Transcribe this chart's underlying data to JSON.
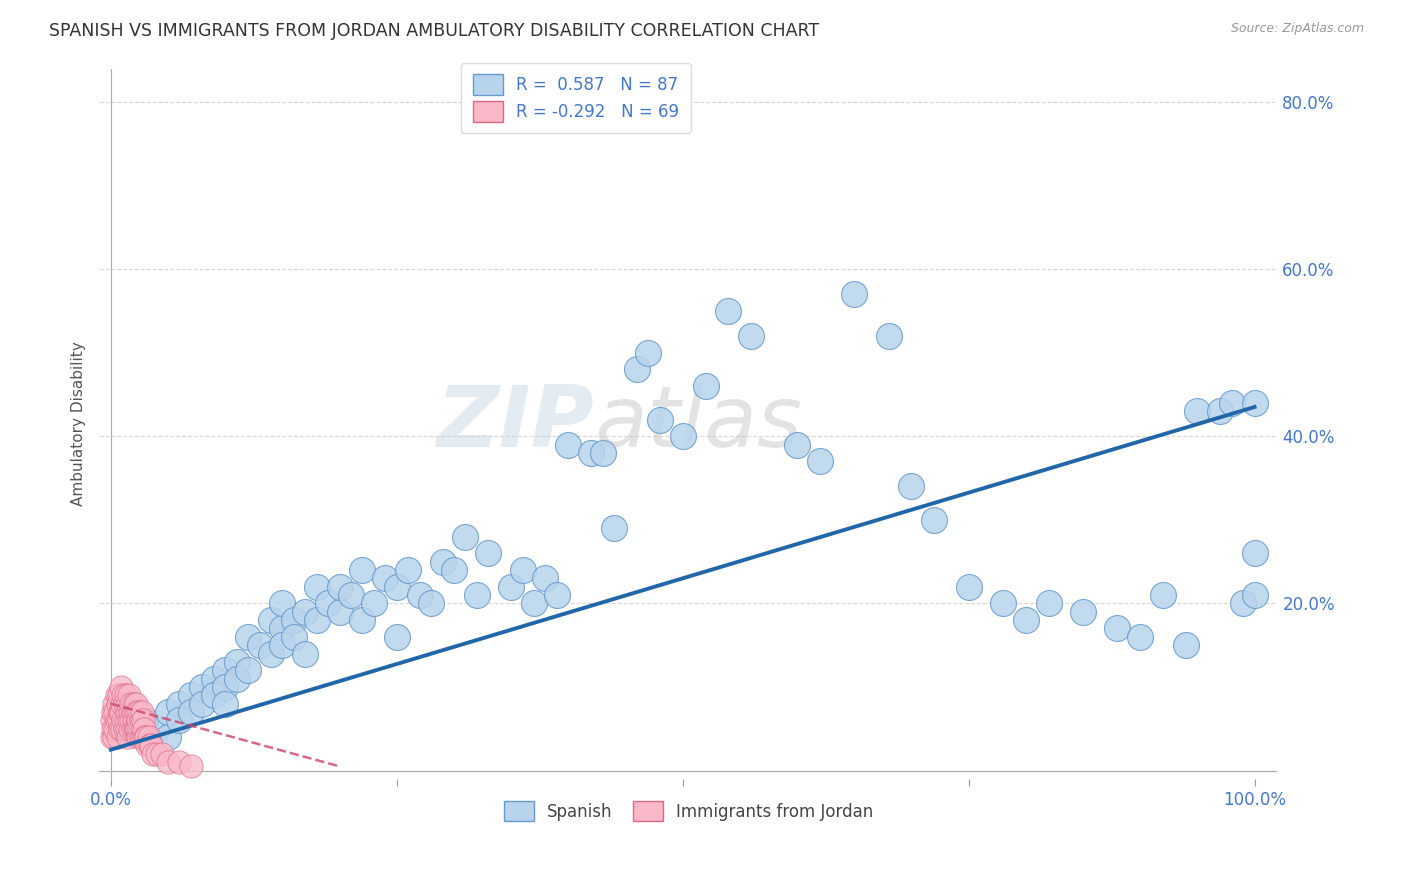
{
  "title": "SPANISH VS IMMIGRANTS FROM JORDAN AMBULATORY DISABILITY CORRELATION CHART",
  "source": "Source: ZipAtlas.com",
  "ylabel": "Ambulatory Disability",
  "xlabel": "",
  "xlim": [
    0,
    1.0
  ],
  "ylim": [
    0,
    0.84
  ],
  "xticks": [
    0.0,
    0.25,
    0.5,
    0.75,
    1.0
  ],
  "xticklabels": [
    "0.0%",
    "",
    "",
    "",
    "100.0%"
  ],
  "ytick_positions": [
    0.0,
    0.2,
    0.4,
    0.6,
    0.8
  ],
  "yticklabels": [
    "",
    "20.0%",
    "40.0%",
    "60.0%",
    "80.0%"
  ],
  "R_spanish": 0.587,
  "N_spanish": 87,
  "R_jordan": -0.292,
  "N_jordan": 69,
  "blue_color": "#b8d4ec",
  "blue_edge_color": "#6699cc",
  "blue_line_color": "#2266aa",
  "pink_color": "#f8b8c8",
  "pink_edge_color": "#dd6688",
  "pink_line_color": "#cc4466",
  "background_color": "#ffffff",
  "grid_color": "#cccccc",
  "title_color": "#333333",
  "axis_label_color": "#555555",
  "tick_label_color": "#4477cc",
  "watermark_left": "ZIP",
  "watermark_right": "atlas",
  "spanish_x": [
    0.03,
    0.04,
    0.05,
    0.05,
    0.06,
    0.06,
    0.07,
    0.07,
    0.08,
    0.08,
    0.09,
    0.09,
    0.1,
    0.1,
    0.1,
    0.11,
    0.11,
    0.12,
    0.12,
    0.13,
    0.14,
    0.14,
    0.15,
    0.15,
    0.15,
    0.16,
    0.16,
    0.17,
    0.17,
    0.18,
    0.18,
    0.19,
    0.2,
    0.2,
    0.21,
    0.22,
    0.22,
    0.23,
    0.24,
    0.25,
    0.25,
    0.26,
    0.27,
    0.28,
    0.29,
    0.3,
    0.31,
    0.32,
    0.33,
    0.35,
    0.36,
    0.37,
    0.38,
    0.39,
    0.4,
    0.42,
    0.43,
    0.44,
    0.46,
    0.47,
    0.48,
    0.5,
    0.52,
    0.54,
    0.56,
    0.6,
    0.62,
    0.65,
    0.68,
    0.7,
    0.72,
    0.75,
    0.78,
    0.8,
    0.82,
    0.85,
    0.88,
    0.9,
    0.92,
    0.94,
    0.95,
    0.97,
    0.98,
    0.99,
    1.0,
    1.0,
    1.0
  ],
  "spanish_y": [
    0.06,
    0.05,
    0.07,
    0.04,
    0.08,
    0.06,
    0.09,
    0.07,
    0.1,
    0.08,
    0.11,
    0.09,
    0.12,
    0.1,
    0.08,
    0.13,
    0.11,
    0.12,
    0.16,
    0.15,
    0.14,
    0.18,
    0.17,
    0.15,
    0.2,
    0.18,
    0.16,
    0.19,
    0.14,
    0.18,
    0.22,
    0.2,
    0.19,
    0.22,
    0.21,
    0.18,
    0.24,
    0.2,
    0.23,
    0.22,
    0.16,
    0.24,
    0.21,
    0.2,
    0.25,
    0.24,
    0.28,
    0.21,
    0.26,
    0.22,
    0.24,
    0.2,
    0.23,
    0.21,
    0.39,
    0.38,
    0.38,
    0.29,
    0.48,
    0.5,
    0.42,
    0.4,
    0.46,
    0.55,
    0.52,
    0.39,
    0.37,
    0.57,
    0.52,
    0.34,
    0.3,
    0.22,
    0.2,
    0.18,
    0.2,
    0.19,
    0.17,
    0.16,
    0.21,
    0.15,
    0.43,
    0.43,
    0.44,
    0.2,
    0.21,
    0.26,
    0.44
  ],
  "jordan_x": [
    0.001,
    0.001,
    0.002,
    0.002,
    0.003,
    0.003,
    0.004,
    0.004,
    0.005,
    0.005,
    0.006,
    0.006,
    0.007,
    0.007,
    0.008,
    0.008,
    0.009,
    0.009,
    0.01,
    0.01,
    0.011,
    0.011,
    0.012,
    0.012,
    0.013,
    0.013,
    0.014,
    0.014,
    0.015,
    0.015,
    0.016,
    0.016,
    0.017,
    0.017,
    0.018,
    0.018,
    0.019,
    0.019,
    0.02,
    0.02,
    0.021,
    0.021,
    0.022,
    0.022,
    0.023,
    0.023,
    0.024,
    0.024,
    0.025,
    0.025,
    0.026,
    0.026,
    0.027,
    0.027,
    0.028,
    0.028,
    0.029,
    0.03,
    0.031,
    0.032,
    0.033,
    0.034,
    0.035,
    0.037,
    0.04,
    0.045,
    0.05,
    0.06,
    0.07
  ],
  "jordan_y": [
    0.06,
    0.04,
    0.07,
    0.05,
    0.08,
    0.04,
    0.07,
    0.05,
    0.09,
    0.06,
    0.08,
    0.04,
    0.09,
    0.06,
    0.07,
    0.05,
    0.1,
    0.07,
    0.08,
    0.05,
    0.09,
    0.06,
    0.08,
    0.05,
    0.09,
    0.06,
    0.07,
    0.05,
    0.08,
    0.04,
    0.09,
    0.06,
    0.07,
    0.05,
    0.08,
    0.06,
    0.07,
    0.05,
    0.08,
    0.06,
    0.07,
    0.05,
    0.08,
    0.05,
    0.07,
    0.05,
    0.06,
    0.04,
    0.07,
    0.05,
    0.06,
    0.04,
    0.07,
    0.05,
    0.06,
    0.04,
    0.05,
    0.04,
    0.04,
    0.03,
    0.04,
    0.03,
    0.03,
    0.02,
    0.02,
    0.02,
    0.01,
    0.01,
    0.005
  ],
  "blue_trend_x0": 0.0,
  "blue_trend_y0": 0.025,
  "blue_trend_x1": 1.0,
  "blue_trend_y1": 0.435,
  "pink_trend_x0": 0.0,
  "pink_trend_y0": 0.08,
  "pink_trend_x1": 0.2,
  "pink_trend_y1": 0.005
}
